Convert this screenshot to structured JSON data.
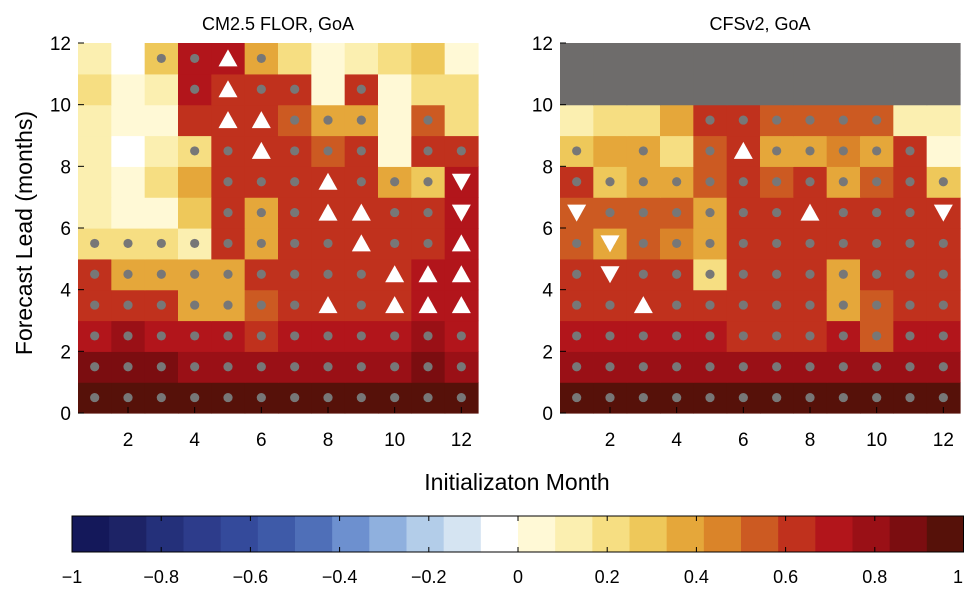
{
  "xlabel": "Initializaton Month",
  "ylabel": "Forecast Lead (months)",
  "chart_data": [
    {
      "type": "heatmap",
      "title": "CM2.5 FLOR, GoA",
      "x": [
        1,
        2,
        3,
        4,
        5,
        6,
        7,
        8,
        9,
        10,
        11,
        12
      ],
      "y": [
        0,
        1,
        2,
        3,
        4,
        5,
        6,
        7,
        8,
        9,
        10,
        11
      ],
      "xlim": [
        0.5,
        12.5
      ],
      "ylim": [
        0,
        12
      ],
      "xticks": [
        2,
        4,
        6,
        8,
        10,
        12
      ],
      "yticks": [
        0,
        2,
        4,
        6,
        8,
        10,
        12
      ],
      "z": [
        [
          0.95,
          0.95,
          0.95,
          0.95,
          0.93,
          0.92,
          0.93,
          0.95,
          0.95,
          0.95,
          0.92,
          0.95
        ],
        [
          0.85,
          0.85,
          0.85,
          0.82,
          0.8,
          0.8,
          0.8,
          0.82,
          0.82,
          0.8,
          0.85,
          0.82
        ],
        [
          0.72,
          0.75,
          0.7,
          0.68,
          0.68,
          0.66,
          0.68,
          0.68,
          0.72,
          0.72,
          0.8,
          0.68
        ],
        [
          0.62,
          0.62,
          0.62,
          0.4,
          0.4,
          0.58,
          0.6,
          0.6,
          0.6,
          0.64,
          0.72,
          0.68
        ],
        [
          0.62,
          0.4,
          0.4,
          0.4,
          0.4,
          0.6,
          0.6,
          0.6,
          0.6,
          0.64,
          0.7,
          0.68
        ],
        [
          0.22,
          0.2,
          0.22,
          0.14,
          0.62,
          0.4,
          0.62,
          0.62,
          0.64,
          0.64,
          0.66,
          0.68
        ],
        [
          0.16,
          0.06,
          0.05,
          0.26,
          0.64,
          0.38,
          0.6,
          0.66,
          0.66,
          0.62,
          0.66,
          0.74
        ],
        [
          0.16,
          0.02,
          0.2,
          0.34,
          0.62,
          0.62,
          0.62,
          0.62,
          0.62,
          0.4,
          0.3,
          0.7
        ],
        [
          0.16,
          -0.08,
          0.1,
          0.24,
          0.64,
          0.64,
          0.62,
          0.58,
          0.62,
          0.06,
          0.6,
          0.64
        ],
        [
          0.12,
          0.02,
          0.02,
          0.62,
          0.64,
          0.64,
          0.5,
          0.4,
          0.34,
          0.08,
          0.58,
          0.24
        ],
        [
          0.22,
          0.02,
          0.14,
          0.68,
          0.66,
          0.66,
          0.62,
          0.02,
          0.62,
          0.02,
          0.22,
          0.18
        ],
        [
          0.12,
          -0.06,
          0.3,
          0.7,
          0.68,
          0.4,
          0.2,
          0.06,
          0.12,
          0.2,
          0.26,
          0.08
        ]
      ],
      "dots": [
        [
          1,
          1,
          1,
          1,
          1,
          1,
          1,
          1,
          1,
          1,
          1,
          1
        ],
        [
          1,
          1,
          1,
          1,
          1,
          1,
          1,
          1,
          1,
          1,
          1,
          1
        ],
        [
          1,
          1,
          1,
          1,
          1,
          1,
          1,
          1,
          1,
          1,
          1,
          1
        ],
        [
          1,
          1,
          1,
          1,
          1,
          1,
          1,
          1,
          1,
          1,
          1,
          1
        ],
        [
          1,
          1,
          1,
          1,
          1,
          1,
          1,
          1,
          1,
          1,
          1,
          1
        ],
        [
          1,
          1,
          1,
          1,
          1,
          1,
          1,
          1,
          1,
          1,
          1,
          1
        ],
        [
          0,
          0,
          0,
          0,
          1,
          1,
          1,
          1,
          1,
          1,
          1,
          1
        ],
        [
          0,
          0,
          0,
          0,
          1,
          1,
          1,
          1,
          1,
          1,
          1,
          0
        ],
        [
          0,
          0,
          0,
          1,
          1,
          1,
          1,
          1,
          1,
          0,
          1,
          1
        ],
        [
          0,
          0,
          0,
          0,
          1,
          1,
          1,
          1,
          1,
          0,
          1,
          0
        ],
        [
          0,
          0,
          0,
          1,
          1,
          1,
          1,
          0,
          1,
          0,
          0,
          0
        ],
        [
          0,
          0,
          1,
          1,
          0,
          1,
          0,
          0,
          0,
          0,
          0,
          0
        ]
      ],
      "triangles_up": [
        [
          5,
          11
        ],
        [
          5,
          10
        ],
        [
          5,
          9
        ],
        [
          6,
          9
        ],
        [
          6,
          8
        ],
        [
          8,
          7
        ],
        [
          8,
          6
        ],
        [
          9,
          6
        ],
        [
          9,
          5
        ],
        [
          12,
          5
        ],
        [
          10,
          4
        ],
        [
          11,
          4
        ],
        [
          12,
          4
        ],
        [
          8,
          3
        ],
        [
          10,
          3
        ],
        [
          11,
          3
        ],
        [
          12,
          3
        ]
      ],
      "triangles_down": [
        [
          12,
          7
        ],
        [
          12,
          6
        ]
      ]
    },
    {
      "type": "heatmap",
      "title": "CFSv2, GoA",
      "x": [
        1,
        2,
        3,
        4,
        5,
        6,
        7,
        8,
        9,
        10,
        11,
        12
      ],
      "y": [
        0,
        1,
        2,
        3,
        4,
        5,
        6,
        7,
        8,
        9,
        10,
        11
      ],
      "xlim": [
        0.5,
        12.5
      ],
      "ylim": [
        0,
        12
      ],
      "xticks": [
        2,
        4,
        6,
        8,
        10,
        12
      ],
      "yticks": [
        0,
        2,
        4,
        6,
        8,
        10,
        12
      ],
      "missing_color": "#6e6c6b",
      "z": [
        [
          0.95,
          0.95,
          0.95,
          0.92,
          0.92,
          0.92,
          0.92,
          0.92,
          0.92,
          0.92,
          0.92,
          0.98
        ],
        [
          0.82,
          0.82,
          0.82,
          0.8,
          0.8,
          0.8,
          0.8,
          0.82,
          0.82,
          0.8,
          0.82,
          0.82
        ],
        [
          0.7,
          0.7,
          0.68,
          0.68,
          0.68,
          0.66,
          0.66,
          0.66,
          0.68,
          0.58,
          0.68,
          0.7
        ],
        [
          0.66,
          0.64,
          0.64,
          0.62,
          0.62,
          0.62,
          0.62,
          0.62,
          0.38,
          0.58,
          0.62,
          0.64
        ],
        [
          0.62,
          0.62,
          0.6,
          0.6,
          0.24,
          0.6,
          0.6,
          0.62,
          0.4,
          0.6,
          0.62,
          0.62
        ],
        [
          0.5,
          0.4,
          0.5,
          0.48,
          0.4,
          0.62,
          0.62,
          0.62,
          0.6,
          0.6,
          0.62,
          0.62
        ],
        [
          0.5,
          0.5,
          0.5,
          0.5,
          0.4,
          0.6,
          0.6,
          0.6,
          0.6,
          0.6,
          0.62,
          0.62
        ],
        [
          0.62,
          0.3,
          0.4,
          0.4,
          0.58,
          0.6,
          0.58,
          0.6,
          0.34,
          0.5,
          0.64,
          0.26
        ],
        [
          0.3,
          0.36,
          0.4,
          0.24,
          0.56,
          0.62,
          0.4,
          0.4,
          0.44,
          0.36,
          0.62,
          0.08
        ],
        [
          0.14,
          0.2,
          0.22,
          0.4,
          0.62,
          0.64,
          0.54,
          0.56,
          0.56,
          0.56,
          0.1,
          0.1
        ],
        [
          null,
          null,
          null,
          null,
          null,
          null,
          null,
          null,
          null,
          null,
          null,
          null
        ],
        [
          null,
          null,
          null,
          null,
          null,
          null,
          null,
          null,
          null,
          null,
          null,
          null
        ]
      ],
      "dots": [
        [
          1,
          1,
          1,
          1,
          1,
          1,
          1,
          1,
          1,
          1,
          1,
          1
        ],
        [
          1,
          1,
          1,
          1,
          1,
          1,
          1,
          1,
          1,
          1,
          1,
          1
        ],
        [
          1,
          1,
          1,
          1,
          1,
          1,
          1,
          1,
          1,
          1,
          1,
          1
        ],
        [
          1,
          1,
          1,
          1,
          1,
          1,
          1,
          1,
          1,
          1,
          1,
          1
        ],
        [
          1,
          1,
          1,
          1,
          1,
          1,
          1,
          1,
          1,
          1,
          1,
          1
        ],
        [
          1,
          1,
          1,
          1,
          1,
          1,
          1,
          1,
          1,
          1,
          1,
          1
        ],
        [
          1,
          1,
          1,
          1,
          1,
          1,
          1,
          1,
          1,
          1,
          1,
          1
        ],
        [
          1,
          1,
          1,
          1,
          1,
          1,
          1,
          1,
          1,
          1,
          1,
          1
        ],
        [
          1,
          0,
          1,
          0,
          1,
          1,
          1,
          1,
          1,
          1,
          1,
          0
        ],
        [
          0,
          0,
          0,
          0,
          1,
          1,
          1,
          1,
          1,
          1,
          0,
          0
        ],
        [
          0,
          0,
          0,
          0,
          0,
          0,
          0,
          0,
          0,
          0,
          0,
          0
        ],
        [
          0,
          0,
          0,
          0,
          0,
          0,
          0,
          0,
          0,
          0,
          0,
          0
        ]
      ],
      "triangles_up": [
        [
          6,
          8
        ],
        [
          8,
          6
        ],
        [
          3,
          3
        ]
      ],
      "triangles_down": [
        [
          1,
          6
        ],
        [
          12,
          6
        ],
        [
          2,
          5
        ],
        [
          2,
          4
        ]
      ]
    }
  ],
  "colorbar": {
    "range": [
      -1,
      1
    ],
    "ticks": [
      -1,
      -0.8,
      -0.6,
      -0.4,
      -0.2,
      0,
      0.2,
      0.4,
      0.6,
      0.8,
      1
    ],
    "tick_labels": [
      "−1",
      "−0.8",
      "−0.6",
      "−0.4",
      "−0.2",
      "0",
      "0.2",
      "0.4",
      "0.6",
      "0.8",
      "1"
    ],
    "colors": [
      "#14185a",
      "#1d2366",
      "#24307a",
      "#2d3c8b",
      "#344a9b",
      "#3e5aa8",
      "#4f6fb8",
      "#6d90cf",
      "#8fb0de",
      "#b3cde9",
      "#d5e4f2",
      "#ffffff",
      "#fff9d6",
      "#fbefb0",
      "#f6de82",
      "#eec85a",
      "#e5a73a",
      "#da8429",
      "#cc5a22",
      "#c0311d",
      "#b2151b",
      "#9a1016",
      "#7b0d10",
      "#561109"
    ]
  }
}
